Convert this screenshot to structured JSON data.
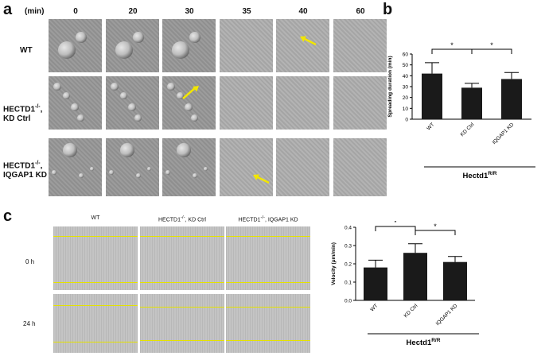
{
  "panel_a": {
    "letter": "a",
    "time_header": "(min)",
    "times": [
      "0",
      "20",
      "30",
      "35",
      "40",
      "60"
    ],
    "rows": [
      {
        "label_line1": "WT",
        "label_sup": "",
        "label_line2": ""
      },
      {
        "label_line1": "HECTD1",
        "label_sup": "-/-",
        "label_line1_suffix": ",",
        "label_line2": "KD Ctrl"
      },
      {
        "label_line1": "HECTD1",
        "label_sup": "-/-",
        "label_line1_suffix": ",",
        "label_line2": "IQGAP1 KD"
      }
    ],
    "arrow_color": "#f2e600"
  },
  "panel_b": {
    "letter": "b",
    "chart_data": {
      "type": "bar",
      "categories": [
        "WT",
        "KD Ctrl",
        "IQGAP1 KD"
      ],
      "values": [
        42,
        29,
        37
      ],
      "errors": [
        10,
        4,
        6
      ],
      "ylabel": "Spreading duration (min)",
      "ylim": [
        0,
        60
      ],
      "yticks": [
        "0",
        "10",
        "20",
        "30",
        "40",
        "50",
        "60"
      ],
      "group_label": "Hectd1",
      "group_label_sup": "R/R",
      "significance": [
        "*",
        "*"
      ],
      "bar_color": "#1a1a1a"
    }
  },
  "panel_c": {
    "letter": "c",
    "columns": [
      "WT",
      "HECTD1",
      "HECTD1"
    ],
    "column_sup": [
      "",
      "-/-",
      "-/-"
    ],
    "column_suffix": [
      "",
      ", KD Ctrl",
      ", IQGAP1 KD"
    ],
    "rows": [
      "0 h",
      "24 h"
    ],
    "line_color": "#e4e200",
    "chart_data": {
      "type": "bar",
      "categories": [
        "WT",
        "KD Ctrl",
        "IQGAP1 KD"
      ],
      "values": [
        0.18,
        0.26,
        0.21
      ],
      "errors": [
        0.04,
        0.05,
        0.03
      ],
      "ylabel": "Velocity (μm/min)",
      "ylim": [
        0,
        0.4
      ],
      "yticks": [
        "0.0",
        "0.1",
        "0.2",
        "0.3",
        "0.4"
      ],
      "group_label": "Hectd1",
      "group_label_sup": "R/R",
      "significance": [
        "*",
        "*"
      ],
      "bar_color": "#1a1a1a"
    }
  }
}
